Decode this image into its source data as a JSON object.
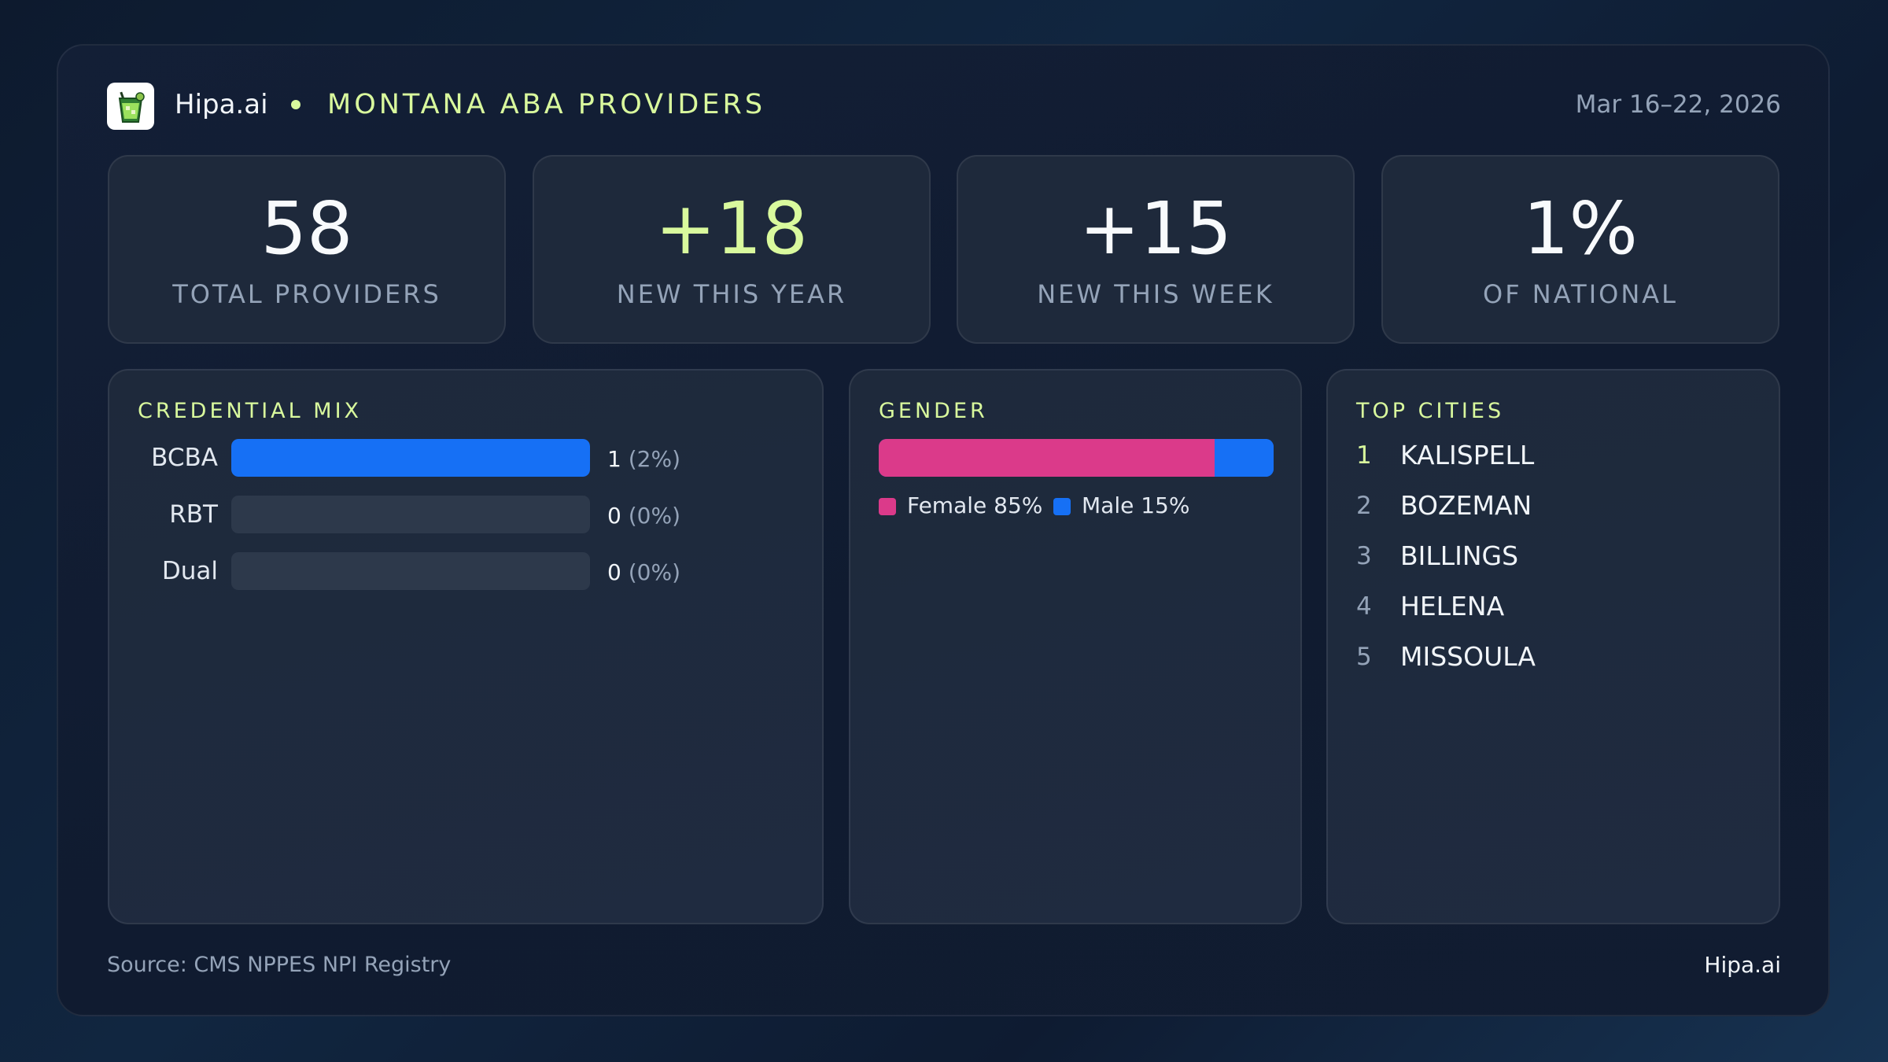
{
  "header": {
    "brand": "Hipa.ai",
    "title": "MONTANA ABA PROVIDERS",
    "date_range": "Mar 16–22, 2026",
    "logo_icon": "drink-cup-icon"
  },
  "stats": [
    {
      "value": "58",
      "label": "TOTAL PROVIDERS"
    },
    {
      "value": "+18",
      "label": "NEW THIS YEAR"
    },
    {
      "value": "+15",
      "label": "NEW THIS WEEK"
    },
    {
      "value": "1%",
      "label": "OF NATIONAL"
    }
  ],
  "credential_mix": {
    "title": "CREDENTIAL MIX",
    "rows": [
      {
        "label": "BCBA",
        "count": "1",
        "pct": "(2%)",
        "fill": 1.0
      },
      {
        "label": "RBT",
        "count": "0",
        "pct": "(0%)",
        "fill": 0
      },
      {
        "label": "Dual",
        "count": "0",
        "pct": "(0%)",
        "fill": 0
      }
    ]
  },
  "gender": {
    "title": "GENDER",
    "female_label": "Female 85%",
    "male_label": "Male 15%",
    "female_share": 0.85,
    "male_share": 0.15
  },
  "top_cities": {
    "title": "TOP CITIES",
    "items": [
      {
        "rank": "1",
        "name": "KALISPELL"
      },
      {
        "rank": "2",
        "name": "BOZEMAN"
      },
      {
        "rank": "3",
        "name": "BILLINGS"
      },
      {
        "rank": "4",
        "name": "HELENA"
      },
      {
        "rank": "5",
        "name": "MISSOULA"
      }
    ]
  },
  "footer": {
    "source": "Source: CMS NPPES NPI Registry",
    "brand": "Hipa.ai"
  },
  "colors": {
    "accent": "#d9f99d",
    "blue": "#1670f5",
    "pink": "#db3a8a",
    "muted": "#94a3b8"
  }
}
